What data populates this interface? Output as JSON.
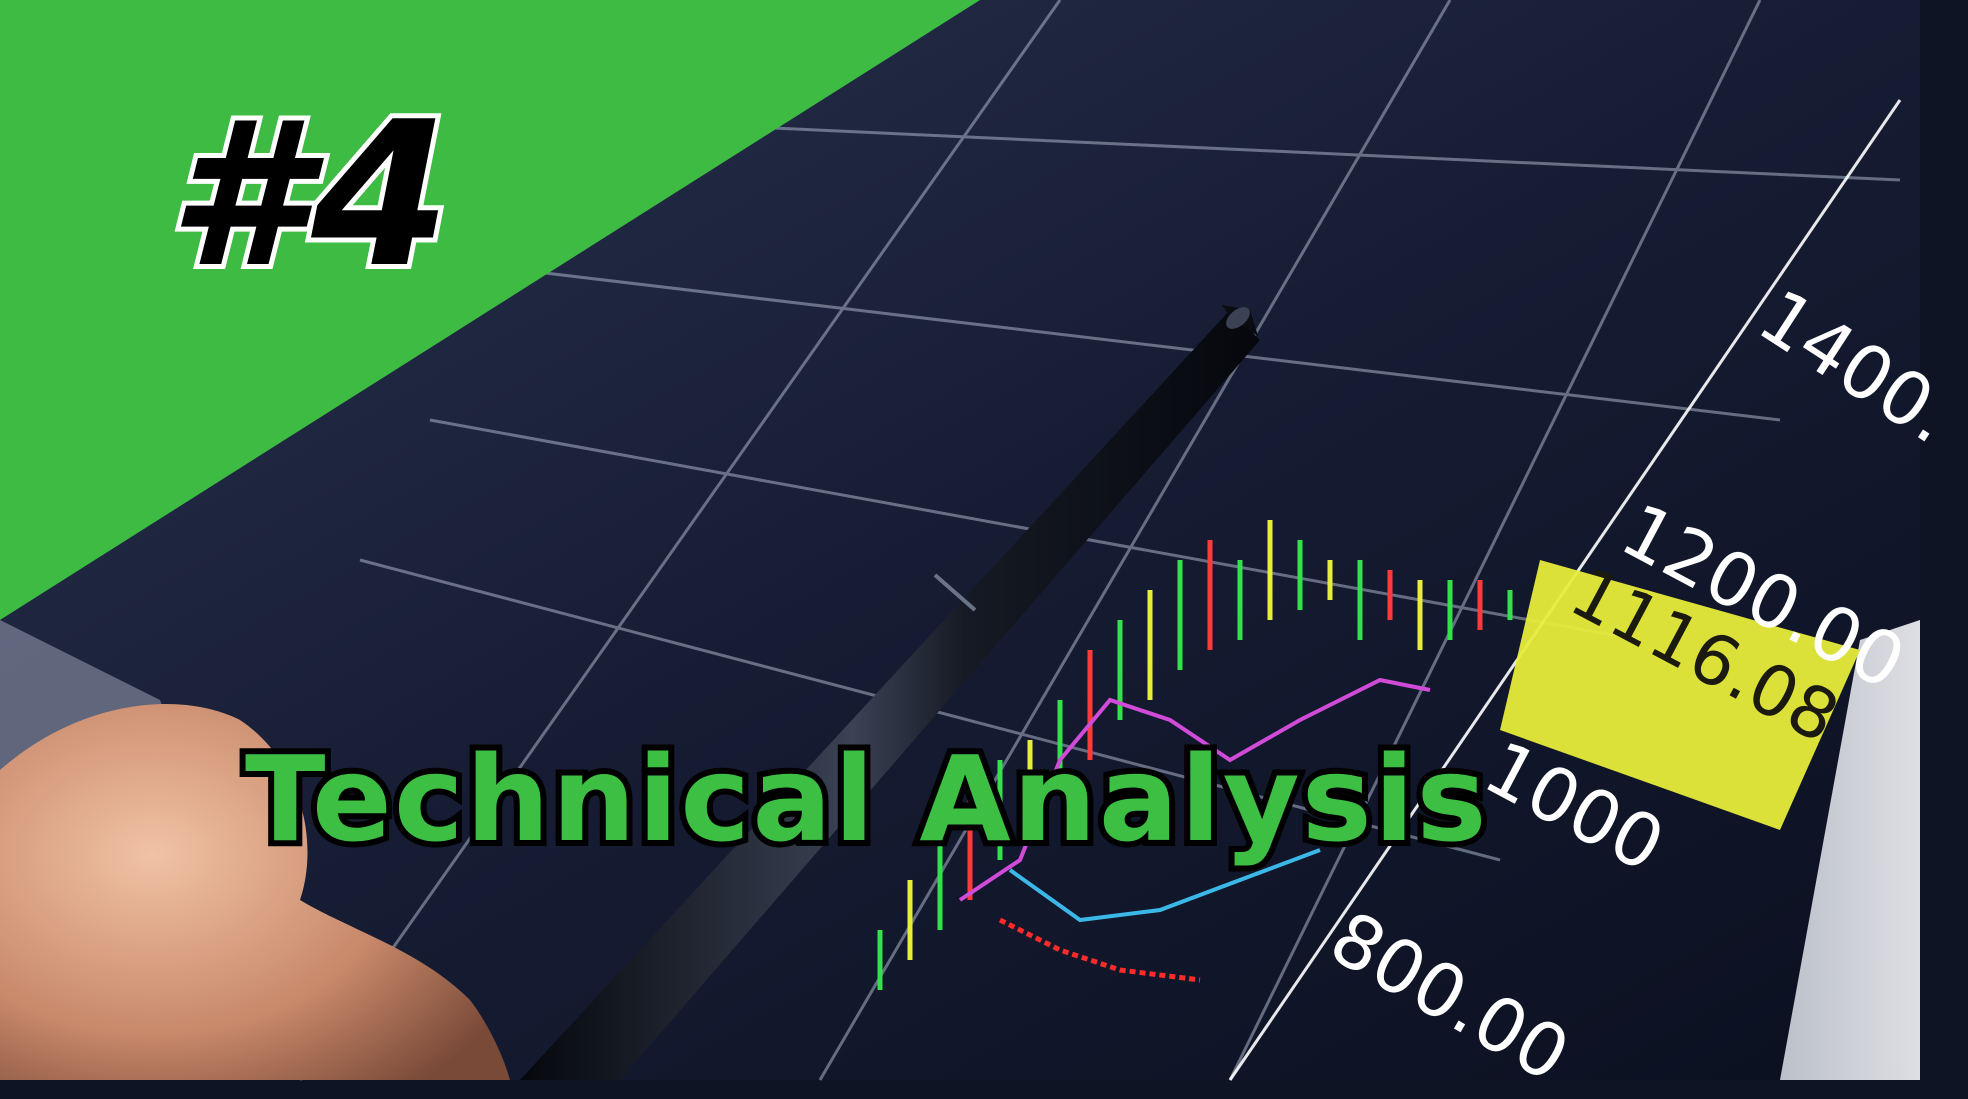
{
  "overlay": {
    "episode_number": "#4",
    "title": "Technical Analysis"
  },
  "screen": {
    "axis_labels": [
      "1400.",
      "1200.00",
      "1000",
      "800.00"
    ],
    "highlight_price": "1116.08"
  },
  "colors": {
    "banner_green": "#3dbb43",
    "title_green": "#3cbf42",
    "highlight_yellow": "#e8ec3a",
    "screen_dark": "#141a30"
  },
  "icons": [
    "pen",
    "hand"
  ]
}
